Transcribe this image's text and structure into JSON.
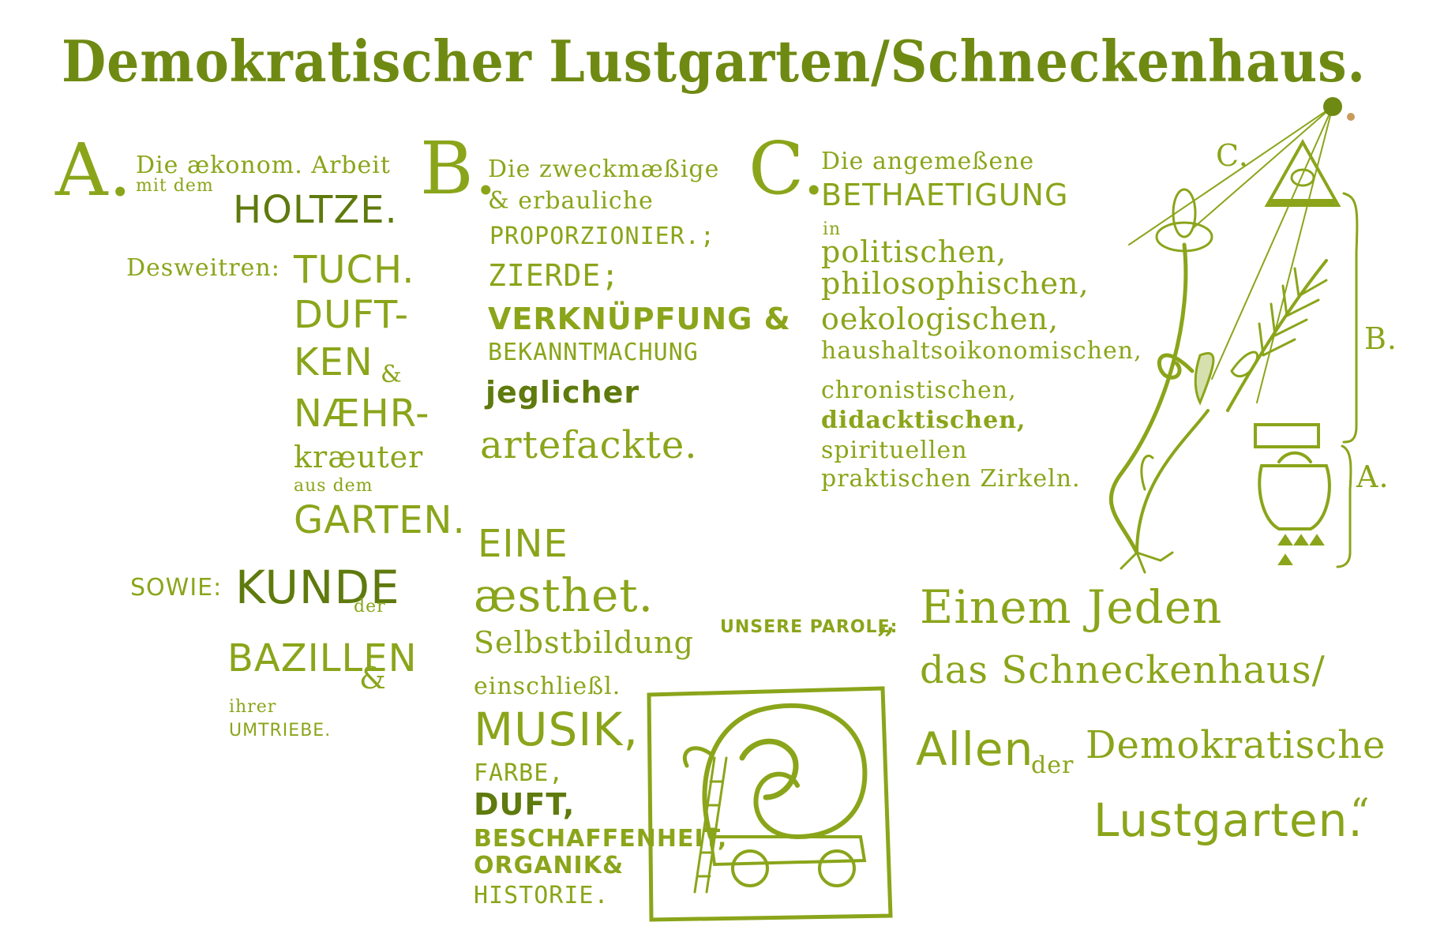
{
  "title": {
    "part1": "Demokratischer",
    "part2": "Lustgarten",
    "sep": "/",
    "part3": "Schneckenhaus."
  },
  "section_a": {
    "letter": "A.",
    "line1": "Die ækonom. Arbeit",
    "line2": "mit dem",
    "line3": "HOLTZE.",
    "desweitren": "Desweitren:",
    "w1": "TUCH.",
    "w2": "DUFT-",
    "w3": "KEN",
    "amp1": "&",
    "w4": "NÆHR-",
    "w5": "kræuter",
    "w6": "aus dem",
    "w7": "GARTEN.",
    "sowie": "SOWIE:",
    "w8": "KUNDE",
    "w8b": "der",
    "w9": "BAZILLEN",
    "amp2": "&",
    "w10": "ihrer",
    "w11": "UMTRIEBE."
  },
  "section_b": {
    "letter": "B.",
    "line1": "Die zweckmæßige",
    "line2": "& erbauliche",
    "line3": "PROPORZIONIER.;",
    "line4": "ZIERDE;",
    "line5": "VERKNÜPFUNG &",
    "line6": "BEKANNTMACHUNG",
    "line7": "jeglicher",
    "line8": "artefackte.",
    "eine1": "EINE",
    "eine2": "æsthet.",
    "eine3": "Selbstbildung",
    "eine4": "einschließl.",
    "eine5": "MUSIK,",
    "eine6": "FARBE,",
    "eine7": "DUFT,",
    "eine8": "BESCHAFFENHEIT,",
    "eine9": "ORGANIK&",
    "eine10": "HISTORIE."
  },
  "section_c": {
    "letter": "C.",
    "line1": "Die angemeßene",
    "line2": "BETHAETIGUNG",
    "line3": "in",
    "line4": "politischen,",
    "line5": "philosophischen,",
    "line6": "oekologischen,",
    "line7": "haushaltsoikonomischen,",
    "line8": "chronistischen,",
    "line9": "didacktischen,",
    "line10": "spirituellen",
    "line11": "praktischen Zirkeln."
  },
  "parole": {
    "label": "UNSERE PAROLE:",
    "quote_open": "„",
    "l1": "Einem Jeden",
    "l2": "das Schneckenhaus/",
    "l3": "Allen",
    "l4": "der",
    "l5": "Demokratische",
    "l6": "Lustgarten.",
    "quote_close": "“"
  },
  "diagram": {
    "label_c": "C.",
    "label_b": "B.",
    "label_a": "A."
  },
  "colors": {
    "ink": "#8aa51a",
    "ink_dark": "#5f7a0d",
    "paper": "#ffffff"
  }
}
